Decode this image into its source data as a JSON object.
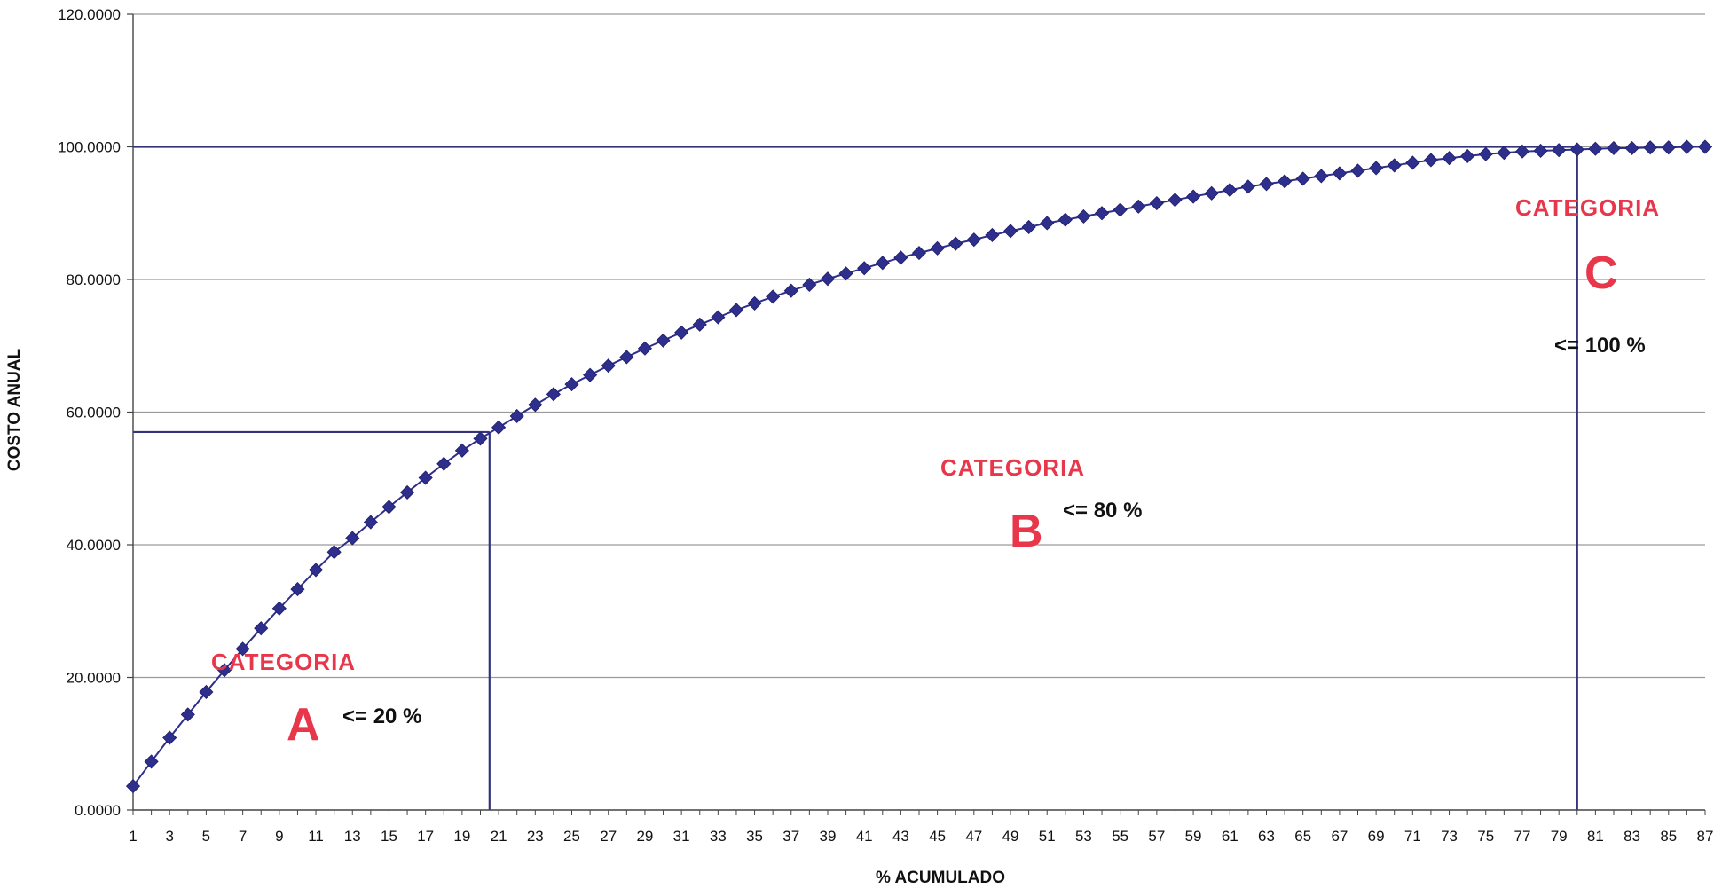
{
  "chart_data": {
    "type": "line",
    "xlabel": "% ACUMULADO",
    "ylabel": "COSTO ANUAL",
    "ylim": [
      0,
      120
    ],
    "xlim": [
      1,
      87
    ],
    "y_ticks": [
      "0.0000",
      "20.0000",
      "40.0000",
      "60.0000",
      "80.0000",
      "100.0000",
      "120.0000"
    ],
    "x_ticks": [
      "1",
      "3",
      "5",
      "7",
      "9",
      "11",
      "13",
      "15",
      "17",
      "19",
      "21",
      "23",
      "25",
      "27",
      "29",
      "31",
      "33",
      "35",
      "37",
      "39",
      "41",
      "43",
      "45",
      "47",
      "49",
      "51",
      "53",
      "55",
      "57",
      "59",
      "61",
      "63",
      "65",
      "67",
      "69",
      "71",
      "73",
      "75",
      "77",
      "79",
      "81",
      "83",
      "85",
      "87"
    ],
    "grid": "horizontal",
    "series": [
      {
        "x": [
          1,
          2,
          3,
          4,
          5,
          6,
          7,
          8,
          9,
          10,
          11,
          12,
          13,
          14,
          15,
          16,
          17,
          18,
          19,
          20,
          21,
          22,
          23,
          24,
          25,
          26,
          27,
          28,
          29,
          30,
          31,
          32,
          33,
          34,
          35,
          36,
          37,
          38,
          39,
          40,
          41,
          42,
          43,
          44,
          45,
          46,
          47,
          48,
          49,
          50,
          51,
          52,
          53,
          54,
          55,
          56,
          57,
          58,
          59,
          60,
          61,
          62,
          63,
          64,
          65,
          66,
          67,
          68,
          69,
          70,
          71,
          72,
          73,
          74,
          75,
          76,
          77,
          78,
          79,
          80,
          81,
          82,
          83,
          84,
          85,
          86,
          87
        ],
        "values": [
          3.6,
          7.3,
          10.9,
          14.4,
          17.8,
          21.1,
          24.3,
          27.4,
          30.4,
          33.3,
          36.2,
          38.9,
          41.0,
          43.4,
          45.7,
          47.9,
          50.1,
          52.2,
          54.2,
          56.0,
          57.7,
          59.4,
          61.1,
          62.7,
          64.2,
          65.6,
          67.0,
          68.3,
          69.6,
          70.8,
          72.0,
          73.2,
          74.3,
          75.4,
          76.4,
          77.4,
          78.3,
          79.2,
          80.1,
          80.9,
          81.7,
          82.5,
          83.3,
          84.0,
          84.7,
          85.4,
          86.0,
          86.7,
          87.3,
          87.9,
          88.5,
          89.0,
          89.5,
          90.0,
          90.5,
          91.0,
          91.5,
          92.0,
          92.5,
          93.0,
          93.5,
          94.0,
          94.4,
          94.8,
          95.2,
          95.6,
          96.0,
          96.4,
          96.8,
          97.2,
          97.6,
          98.0,
          98.3,
          98.6,
          98.9,
          99.1,
          99.3,
          99.4,
          99.5,
          99.6,
          99.7,
          99.8,
          99.8,
          99.9,
          99.9,
          100.0,
          100.0
        ]
      }
    ],
    "reference_lines": [
      {
        "type": "horizontal",
        "y": 100.0,
        "x_from": 1,
        "x_to": 80
      },
      {
        "type": "horizontal",
        "y": 57.0,
        "x_from": 1,
        "x_to": 20.5
      },
      {
        "type": "vertical",
        "x": 20.5,
        "y_from": 0,
        "y_to": 57.0
      },
      {
        "type": "vertical",
        "x": 80,
        "y_from": 0,
        "y_to": 100.0
      }
    ],
    "annotations": [
      {
        "word": "CATEGORIA",
        "letter": "A",
        "threshold": "<= 20 %"
      },
      {
        "word": "CATEGORIA",
        "letter": "B",
        "threshold": "<= 80 %"
      },
      {
        "word": "CATEGORIA",
        "letter": "C",
        "threshold": "<= 100 %"
      }
    ],
    "colors": {
      "series": "#2e2e8c",
      "reference": "#34347a",
      "grid": "#9a9a9a",
      "category": "#e8364a"
    }
  }
}
